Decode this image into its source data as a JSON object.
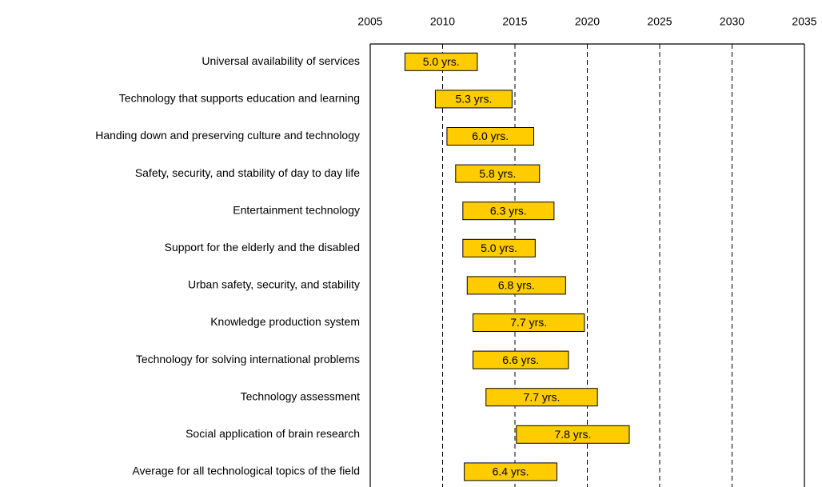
{
  "chart_data": {
    "type": "floating-bar",
    "categories": [
      "Universal availability of services",
      "Technology that supports education and learning",
      "Handing down and preserving culture and technology",
      "Safety, security, and stability of day to day life",
      "Entertainment technology",
      "Support for the elderly and the disabled",
      "Urban safety, security, and stability",
      "Knowledge production system",
      "Technology for solving international problems",
      "Technology assessment",
      "Social application of brain research",
      "Average for all technological topics of the field"
    ],
    "starts": [
      2007.4,
      2009.5,
      2010.3,
      2010.9,
      2011.4,
      2011.4,
      2011.7,
      2012.1,
      2012.1,
      2013.0,
      2015.1,
      2011.5
    ],
    "values": [
      5.0,
      5.3,
      6.0,
      5.8,
      6.3,
      5.0,
      6.8,
      7.7,
      6.6,
      7.7,
      7.8,
      6.4
    ],
    "value_labels": [
      "5.0 yrs.",
      "5.3 yrs.",
      "6.0 yrs.",
      "5.8 yrs.",
      "6.3 yrs.",
      "5.0 yrs.",
      "6.8 yrs.",
      "7.7 yrs.",
      "6.6 yrs.",
      "7.7 yrs.",
      "7.8 yrs.",
      "6.4 yrs."
    ],
    "color": "#ffcc00",
    "xlim": [
      2005,
      2035
    ],
    "xticks": [
      2005,
      2010,
      2015,
      2020,
      2025,
      2030,
      2035
    ],
    "grid": true
  }
}
